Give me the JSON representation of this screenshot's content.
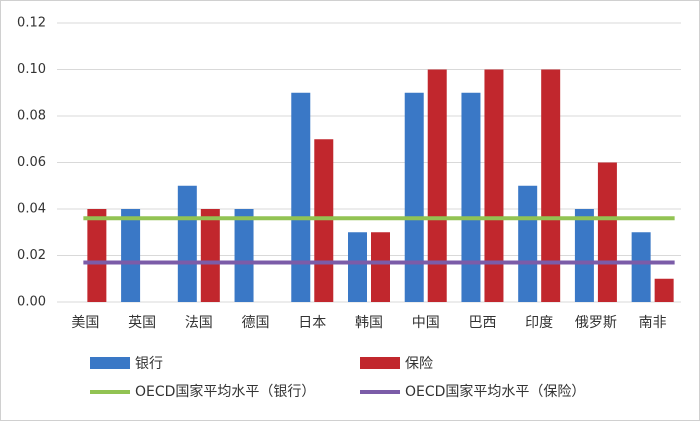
{
  "chart_data": {
    "type": "bar",
    "categories": [
      "美国",
      "英国",
      "法国",
      "德国",
      "日本",
      "韩国",
      "中国",
      "巴西",
      "印度",
      "俄罗斯",
      "南非"
    ],
    "series": [
      {
        "name": "银行",
        "color": "#3a78c6",
        "values": [
          null,
          0.04,
          0.05,
          0.04,
          0.09,
          0.03,
          0.09,
          0.09,
          0.05,
          0.04,
          0.03
        ]
      },
      {
        "name": "保险",
        "color": "#c1272d",
        "values": [
          0.04,
          null,
          0.04,
          null,
          0.07,
          0.03,
          0.1,
          0.1,
          0.1,
          0.06,
          0.01
        ]
      }
    ],
    "reference_lines": [
      {
        "name": "OECD国家平均水平（银行）",
        "color": "#92c353",
        "value": 0.036
      },
      {
        "name": "OECD国家平均水平（保险）",
        "color": "#7b5ca8",
        "value": 0.017
      }
    ],
    "ylim": [
      0,
      0.12
    ],
    "yticks": [
      {
        "value": 0,
        "label": "0.00"
      },
      0.02,
      0.04,
      0.06,
      0.08,
      {
        "value": 0.1,
        "label": "0.10"
      },
      0.12
    ],
    "grid": true
  }
}
